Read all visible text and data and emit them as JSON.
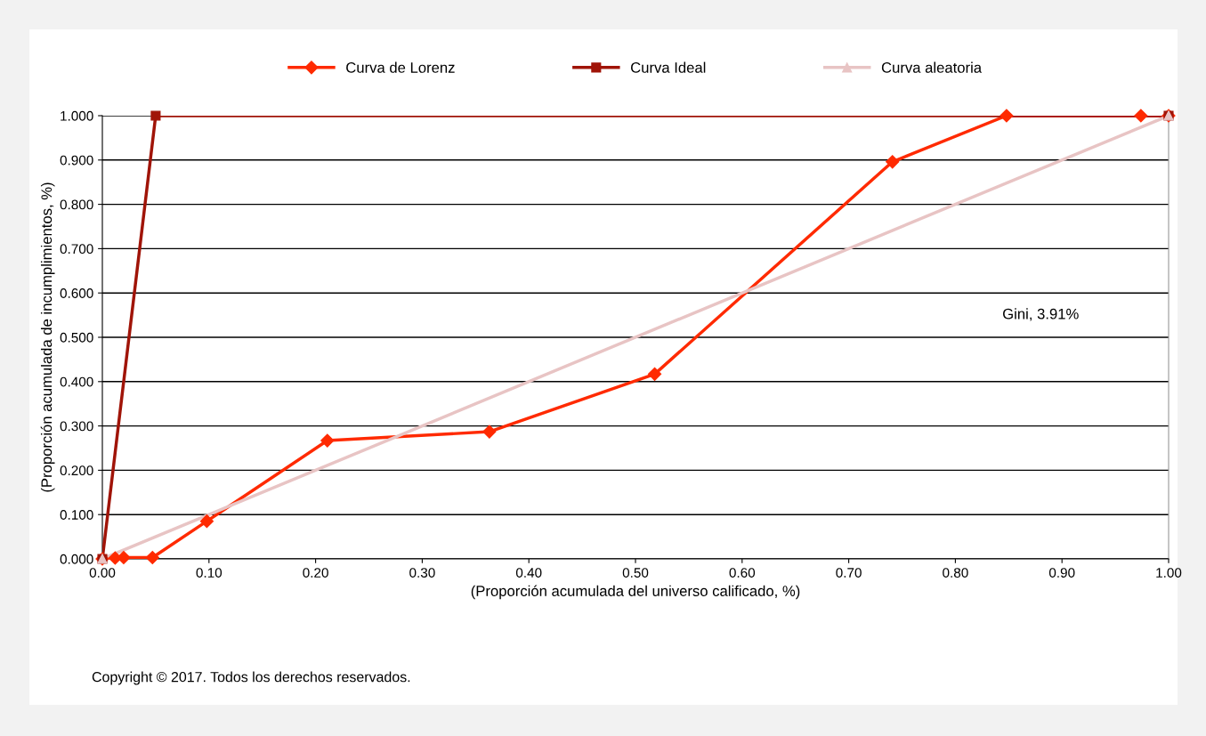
{
  "chart_data": {
    "type": "line",
    "xlabel": "(Proporción acumulada del universo calificado, %)",
    "ylabel": "(Proporción acumulada de incumplimientos, %)",
    "series": [
      {
        "name": "Curva de Lorenz",
        "color": "#ff2a00",
        "marker": "diamond",
        "x": [
          0,
          0.012,
          0.02,
          0.047,
          0.098,
          0.211,
          0.363,
          0.518,
          0.741,
          0.848,
          0.974,
          1.0
        ],
        "values": [
          0,
          0.002,
          0.003,
          0.003,
          0.085,
          0.267,
          0.287,
          0.417,
          0.896,
          1.0,
          1.0,
          1.0
        ]
      },
      {
        "name": "Curva Ideal",
        "color": "#a01408",
        "marker": "square",
        "x": [
          0,
          0.05,
          1.0
        ],
        "values": [
          0,
          1.0,
          1.0
        ]
      },
      {
        "name": "Curva aleatoria",
        "color": "#e8c4c4",
        "marker": "triangle",
        "x": [
          0,
          1.0
        ],
        "values": [
          0,
          1.0
        ]
      }
    ],
    "xlim": [
      0,
      1
    ],
    "ylim": [
      0,
      1
    ],
    "xticks": [
      {
        "value": 0,
        "label": "0.00"
      },
      {
        "value": 0.1,
        "label": "0.10"
      },
      {
        "value": 0.2,
        "label": "0.20"
      },
      {
        "value": 0.3,
        "label": "0.30"
      },
      {
        "value": 0.4,
        "label": "0.40"
      },
      {
        "value": 0.5,
        "label": "0.50"
      },
      {
        "value": 0.6,
        "label": "0.60"
      },
      {
        "value": 0.7,
        "label": "0.70"
      },
      {
        "value": 0.8,
        "label": "0.80"
      },
      {
        "value": 0.9,
        "label": "0.90"
      },
      {
        "value": 1,
        "label": "1.00"
      }
    ],
    "yticks": [
      {
        "value": 0,
        "label": "0.000"
      },
      {
        "value": 0.1,
        "label": "0.100"
      },
      {
        "value": 0.2,
        "label": "0.200"
      },
      {
        "value": 0.3,
        "label": "0.300"
      },
      {
        "value": 0.4,
        "label": "0.400"
      },
      {
        "value": 0.5,
        "label": "0.500"
      },
      {
        "value": 0.6,
        "label": "0.600"
      },
      {
        "value": 0.7,
        "label": "0.700"
      },
      {
        "value": 0.8,
        "label": "0.800"
      },
      {
        "value": 0.9,
        "label": "0.900"
      },
      {
        "value": 1,
        "label": "1.000"
      }
    ],
    "grid": "y",
    "legend": "top",
    "annotations": [
      "Gini, 3.91%",
      "Copyright © 2017. Todos los derechos reservados."
    ]
  }
}
